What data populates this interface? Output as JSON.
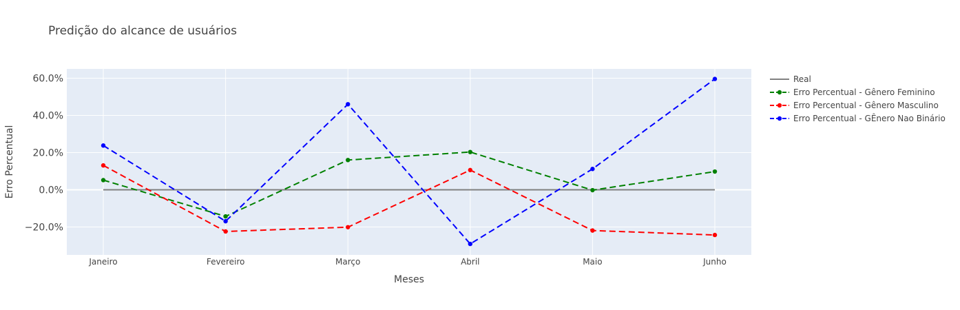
{
  "chart_data": {
    "type": "line",
    "title": "Predição do alcance de usuários",
    "xlabel": "Meses",
    "ylabel": "Erro Percentual",
    "categories": [
      "Janeiro",
      "Fevereiro",
      "Março",
      "Abril",
      "Maio",
      "Junho"
    ],
    "ylim": [
      -35,
      65
    ],
    "yticks": [
      -20,
      0,
      20,
      40,
      60
    ],
    "ytick_labels": [
      "−20.0%",
      "0.0%",
      "20.0%",
      "40.0%",
      "60.0%"
    ],
    "grid": true,
    "legend": "right",
    "series": [
      {
        "name": "Real",
        "values": [
          0,
          0,
          0,
          0,
          0,
          0
        ],
        "color": "#808080",
        "dash": "solid",
        "markers": false
      },
      {
        "name": "Erro Percentual - Gênero Feminino",
        "values": [
          5.2,
          -14.3,
          16,
          20.3,
          -0.2,
          9.8
        ],
        "color": "#008000",
        "dash": "dash",
        "markers": true
      },
      {
        "name": "Erro Percentual - Gênero Masculino",
        "values": [
          13.1,
          -22.4,
          -20.1,
          10.6,
          -21.9,
          -24.3
        ],
        "color": "#ff0000",
        "dash": "dash",
        "markers": true
      },
      {
        "name": "Erro Percentual - GÊnero Nao Binário",
        "values": [
          23.8,
          -16.9,
          46,
          -29.1,
          11.2,
          59.6
        ],
        "color": "#0000ff",
        "dash": "dash",
        "markers": true
      }
    ]
  }
}
